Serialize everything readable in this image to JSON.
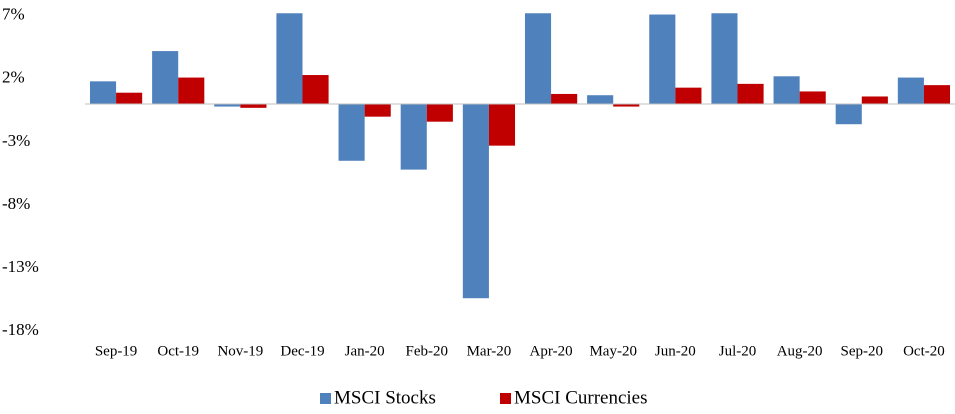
{
  "chart_data": {
    "type": "bar",
    "categories": [
      "Sep-19",
      "Oct-19",
      "Nov-19",
      "Dec-19",
      "Jan-20",
      "Feb-20",
      "Mar-20",
      "Apr-20",
      "May-20",
      "Jun-20",
      "Jul-20",
      "Aug-20",
      "Sep-20",
      "Oct-20"
    ],
    "series": [
      {
        "name": "MSCI Stocks",
        "color": "#4f81bd",
        "values": [
          1.8,
          4.2,
          -0.2,
          7.2,
          -4.5,
          -5.2,
          -15.4,
          7.2,
          0.7,
          7.1,
          7.2,
          2.2,
          -1.6,
          2.1
        ]
      },
      {
        "name": "MSCI Currencies",
        "color": "#c00000",
        "values": [
          0.9,
          2.1,
          -0.3,
          2.3,
          -1.0,
          -1.4,
          -3.3,
          0.8,
          -0.2,
          1.3,
          1.6,
          1.0,
          0.6,
          1.5
        ]
      }
    ],
    "ylim": [
      -18,
      7.3
    ],
    "yticks": [
      {
        "value": 7,
        "label": "7%"
      },
      {
        "value": 2,
        "label": "2%"
      },
      {
        "value": -3,
        "label": "-3%"
      },
      {
        "value": -8,
        "label": "-8%"
      },
      {
        "value": -13,
        "label": "-13%"
      },
      {
        "value": -18,
        "label": "-18%"
      }
    ],
    "legend": "bottom"
  }
}
